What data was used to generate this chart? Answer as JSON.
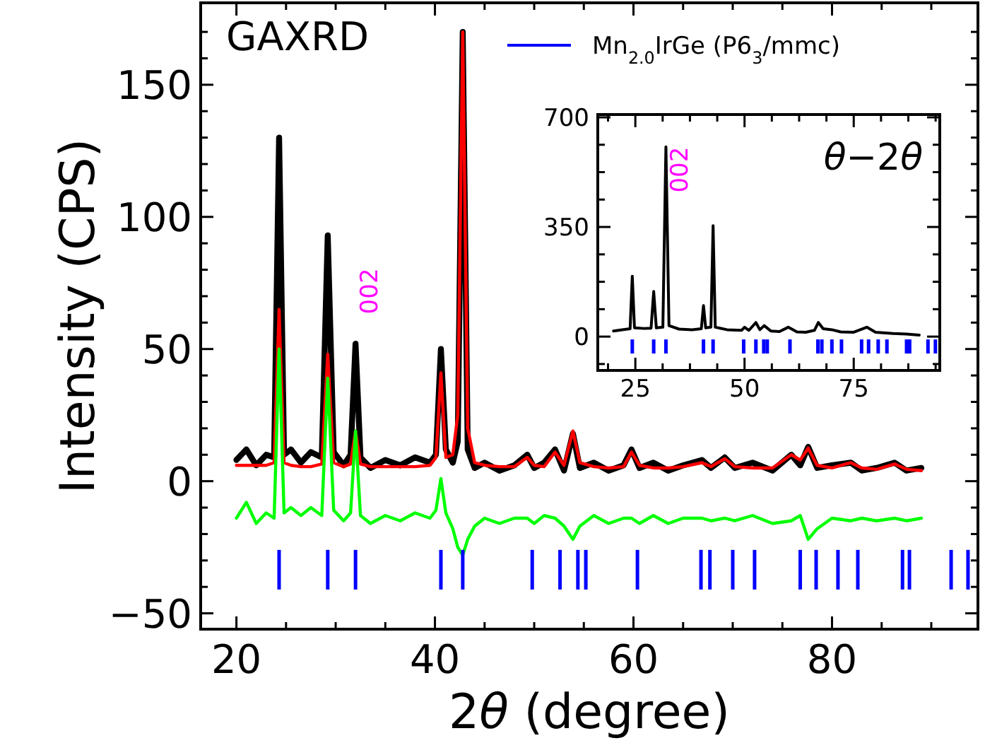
{
  "chart_data": [
    {
      "type": "line",
      "annotations": [
        "GAXRD",
        {
          "text": "002",
          "x": 32,
          "y": 52.5
        }
      ],
      "xlabel": "2θ (degree)",
      "ylabel": "Intensity (CPS)",
      "xlim": [
        16.4,
        94.7
      ],
      "ylim": [
        -56,
        181
      ],
      "xticks": [
        20,
        {
          "value": 25,
          "label": null
        },
        {
          "value": 30,
          "label": null
        },
        {
          "value": 35,
          "label": null
        },
        40,
        {
          "value": 45,
          "label": null
        },
        {
          "value": 50,
          "label": null
        },
        {
          "value": 55,
          "label": null
        },
        60,
        {
          "value": 65,
          "label": null
        },
        {
          "value": 70,
          "label": null
        },
        {
          "value": 75,
          "label": null
        },
        80,
        {
          "value": 85,
          "label": null
        },
        {
          "value": 90,
          "label": null
        }
      ],
      "yticks": [
        -50,
        {
          "value": -40,
          "label": null
        },
        {
          "value": -30,
          "label": null
        },
        {
          "value": -20,
          "label": null
        },
        {
          "value": -10,
          "label": null
        },
        0,
        {
          "value": 10,
          "label": null
        },
        {
          "value": 20,
          "label": null
        },
        {
          "value": 30,
          "label": null
        },
        {
          "value": 40,
          "label": null
        },
        50,
        {
          "value": 60,
          "label": null
        },
        {
          "value": 70,
          "label": null
        },
        {
          "value": 80,
          "label": null
        },
        {
          "value": 90,
          "label": null
        },
        100,
        {
          "value": 110,
          "label": null
        },
        {
          "value": 120,
          "label": null
        },
        {
          "value": 130,
          "label": null
        },
        {
          "value": 140,
          "label": null
        },
        150,
        {
          "value": 160,
          "label": null
        },
        {
          "value": 170,
          "label": null
        }
      ],
      "legend": "top right",
      "grid": false,
      "series": [
        {
          "color": "#000000",
          "x": [
            20,
            21,
            22,
            23,
            23.8,
            24.3,
            24.8,
            25.5,
            26.5,
            27.5,
            28.6,
            29.2,
            29.8,
            30.8,
            31.5,
            32,
            32.5,
            33.5,
            35,
            36.5,
            38,
            39.5,
            40.1,
            40.6,
            41.1,
            41.8,
            42.3,
            42.8,
            43.3,
            44,
            45,
            46.5,
            48,
            49.3,
            50,
            51,
            52.1,
            53,
            53.9,
            54.6,
            56,
            57.5,
            59,
            59.8,
            60.6,
            62,
            63.5,
            65,
            66.9,
            67.8,
            69.2,
            70.2,
            72,
            74,
            75.9,
            76.8,
            77.6,
            78.5,
            80,
            81.9,
            83,
            84.5,
            86.3,
            87.5,
            89
          ],
          "values": [
            8,
            12,
            6,
            10,
            9,
            130,
            10,
            12,
            7,
            11,
            9,
            93,
            11,
            6,
            10,
            52,
            9,
            5,
            8,
            6,
            9,
            7,
            10,
            50,
            12,
            7,
            15,
            170,
            12,
            5,
            7,
            4,
            6,
            10,
            5,
            7,
            12,
            4,
            18,
            5,
            7,
            4,
            6,
            12,
            5,
            7,
            4,
            6,
            8,
            5,
            9,
            5,
            7,
            4,
            10,
            6,
            13,
            5,
            6,
            7,
            4,
            5,
            7,
            4,
            5
          ]
        },
        {
          "color": "#ff0000",
          "x": [
            20,
            21,
            22,
            23,
            23.8,
            24.3,
            24.8,
            25.5,
            26.5,
            27.5,
            28.6,
            29.2,
            29.8,
            30.8,
            31.5,
            32,
            32.5,
            33.5,
            35,
            36.5,
            38,
            39.5,
            40.1,
            40.6,
            41.1,
            41.8,
            42.3,
            42.8,
            43.3,
            44,
            45,
            46.5,
            48,
            49.3,
            50,
            51,
            52.1,
            53,
            53.9,
            54.6,
            56,
            57.5,
            59,
            59.8,
            60.6,
            62,
            63.5,
            65,
            66.9,
            67.8,
            69.2,
            70.2,
            72,
            74,
            75.9,
            76.8,
            77.6,
            78.5,
            80,
            81.9,
            83,
            84.5,
            86.3,
            87.5,
            89
          ],
          "values": [
            6,
            6,
            6,
            6,
            7,
            65,
            7,
            6,
            5.5,
            5.5,
            6.5,
            48,
            7,
            5.5,
            6.5,
            19,
            6.5,
            5.5,
            5.5,
            5.5,
            5.5,
            6,
            9,
            41,
            9,
            10,
            25,
            170,
            20,
            7,
            6,
            5.5,
            5.5,
            9,
            6,
            5.5,
            11,
            6,
            19,
            7,
            5.5,
            5,
            5.5,
            11,
            6,
            5,
            5,
            5.5,
            7,
            5.5,
            8.5,
            5.5,
            5,
            5,
            10,
            8,
            12.5,
            6,
            5,
            7,
            5,
            4.5,
            6.5,
            4.5,
            4
          ]
        },
        {
          "color": "#00ff00",
          "x": [
            20,
            21,
            22,
            23,
            23.8,
            24.3,
            24.8,
            25.5,
            26.5,
            27.5,
            28.6,
            29.2,
            29.8,
            30.8,
            31.5,
            32,
            32.5,
            33.5,
            35,
            36.5,
            38,
            39.5,
            40.1,
            40.6,
            41.1,
            41.8,
            42.3,
            42.8,
            43.3,
            44,
            45,
            46.5,
            48,
            49.3,
            50,
            51,
            52.1,
            53,
            53.9,
            54.6,
            56,
            57.5,
            59,
            59.8,
            60.6,
            62,
            63.5,
            65,
            66.9,
            67.8,
            69.2,
            70.2,
            72,
            74,
            75.9,
            76.8,
            77.6,
            78.5,
            80,
            81.9,
            83,
            84.5,
            86.3,
            87.5,
            89
          ],
          "values": [
            -14,
            -8,
            -16,
            -12,
            -14,
            50,
            -12,
            -10,
            -13,
            -10,
            -13,
            39,
            -11,
            -15,
            -12,
            19,
            -13,
            -16,
            -13,
            -15,
            -12,
            -14,
            -11,
            1,
            -12,
            -18,
            -25,
            -28,
            -22,
            -17,
            -14,
            -16,
            -14,
            -14,
            -16,
            -13,
            -14,
            -17,
            -22,
            -17,
            -13,
            -16,
            -14,
            -14,
            -16,
            -13,
            -16,
            -14,
            -14,
            -15,
            -14,
            -15,
            -13,
            -16,
            -15,
            -13,
            -22,
            -18,
            -14,
            -15,
            -14,
            -15,
            -14,
            -15,
            -14
          ]
        },
        {
          "type": "bar",
          "name": "Mn$_{2.0}$IrGe (P6$_{3}$/mmc)",
          "color": "#0000ff",
          "x": [
            24.3,
            29.2,
            32,
            40.6,
            42.8,
            49.8,
            52.6,
            54.4,
            55.2,
            60.4,
            66.8,
            67.7,
            70,
            72.2,
            76.8,
            78.4,
            80.6,
            82.6,
            87.1,
            87.8,
            92,
            93.7
          ],
          "base": [
            -41,
            -41,
            -41,
            -41,
            -41,
            -41,
            -41,
            -41,
            -41,
            -41,
            -41,
            -41,
            -41,
            -41,
            -41,
            -41,
            -41,
            -41,
            -41,
            -41,
            -41,
            -41
          ],
          "values": [
            15,
            15,
            15,
            15,
            15,
            15,
            15,
            15,
            15,
            15,
            15,
            15,
            15,
            15,
            15,
            15,
            15,
            15,
            15,
            15,
            15,
            15
          ]
        }
      ]
    },
    {
      "type": "line",
      "title": "θ−2θ",
      "annotations": [
        {
          "text": "002",
          "x": 32,
          "y": 606
        }
      ],
      "xlim": [
        16.4,
        94.7
      ],
      "ylim": [
        -108,
        709
      ],
      "xticks": [
        {
          "value": 18.75,
          "label": null
        },
        25,
        {
          "value": 31.25,
          "label": null
        },
        {
          "value": 37.5,
          "label": null
        },
        {
          "value": 43.75,
          "label": null
        },
        50,
        {
          "value": 56.25,
          "label": null
        },
        {
          "value": 62.5,
          "label": null
        },
        {
          "value": 68.75,
          "label": null
        },
        75,
        {
          "value": 81.25,
          "label": null
        },
        {
          "value": 87.5,
          "label": null
        },
        {
          "value": 93.75,
          "label": null
        }
      ],
      "yticks": [
        {
          "value": -87.5,
          "label": null
        },
        0,
        {
          "value": 87.5,
          "label": null
        },
        {
          "value": 175,
          "label": null
        },
        {
          "value": 262.5,
          "label": null
        },
        350,
        {
          "value": 437.5,
          "label": null
        },
        {
          "value": 525,
          "label": null
        },
        {
          "value": 612.5,
          "label": null
        },
        700
      ],
      "series": [
        {
          "color": "#000000",
          "x": [
            20,
            22,
            23.8,
            24.3,
            24.8,
            27,
            28.6,
            29.2,
            29.8,
            31.3,
            32,
            32.7,
            35,
            38,
            40.1,
            40.6,
            41.1,
            42.3,
            42.8,
            43.3,
            46,
            49.3,
            50,
            51,
            52.6,
            53.5,
            54.5,
            56,
            58,
            60,
            62,
            64,
            66,
            66.9,
            68,
            70,
            72,
            75,
            78,
            80,
            84,
            87,
            90
          ],
          "values": [
            18,
            22,
            25,
            193,
            28,
            26,
            27,
            144,
            28,
            30,
            606,
            35,
            24,
            22,
            25,
            99,
            28,
            30,
            354,
            30,
            22,
            20,
            30,
            20,
            45,
            22,
            35,
            18,
            16,
            30,
            15,
            14,
            20,
            45,
            25,
            22,
            15,
            14,
            30,
            14,
            10,
            8,
            5
          ]
        },
        {
          "type": "bar",
          "color": "#0000ff",
          "x": [
            24.3,
            29.2,
            32,
            40.6,
            42.8,
            49.8,
            52.6,
            54.4,
            55.2,
            60.4,
            66.8,
            67.7,
            70,
            72.2,
            76.8,
            78.4,
            80.6,
            82.6,
            87.1,
            87.8,
            92,
            93.7
          ],
          "base": [
            -54,
            -54,
            -54,
            -54,
            -54,
            -54,
            -54,
            -54,
            -54,
            -54,
            -54,
            -54,
            -54,
            -54,
            -54,
            -54,
            -54,
            -54,
            -54,
            -54,
            -54,
            -54
          ],
          "values": [
            45,
            45,
            45,
            45,
            45,
            45,
            45,
            45,
            45,
            45,
            45,
            45,
            45,
            45,
            45,
            45,
            45,
            45,
            45,
            45,
            45,
            45
          ]
        }
      ]
    }
  ]
}
